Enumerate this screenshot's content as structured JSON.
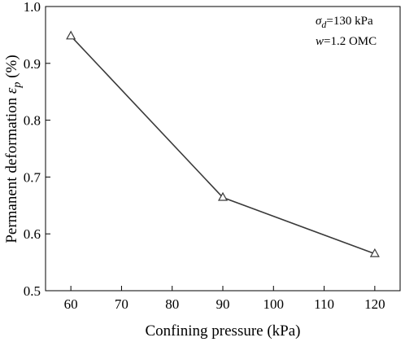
{
  "chart_data": {
    "type": "line",
    "x": [
      60,
      90,
      120
    ],
    "series": [
      {
        "values": [
          0.948,
          0.664,
          0.565
        ]
      }
    ],
    "xlabel": "Confining pressure (kPa)",
    "ylabel_main": "Permanent deformation ",
    "ylabel_symbol": "ε",
    "ylabel_sub": "p",
    "ylabel_unit": " (%)",
    "xlim": [
      55,
      125
    ],
    "ylim": [
      0.5,
      1.0
    ],
    "xticks": [
      60,
      70,
      80,
      90,
      100,
      110,
      120
    ],
    "yticks": [
      "0.5",
      "0.6",
      "0.7",
      "0.8",
      "0.9",
      "1.0"
    ],
    "marker": "open-triangle",
    "grid": false,
    "annotations": {
      "line1_symbol": "σ",
      "line1_sub": "d",
      "line1_value": "=130 kPa",
      "line2_symbol": "w",
      "line2_value": "=1.2 OMC"
    },
    "colors": {
      "line": "#3a3a3a",
      "axis": "#000000"
    }
  }
}
